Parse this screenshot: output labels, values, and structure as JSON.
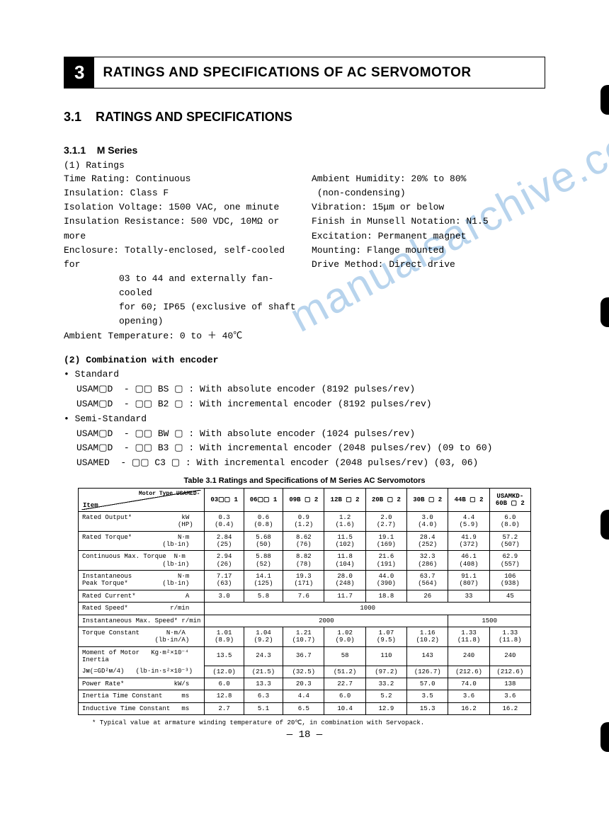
{
  "chapter": {
    "number": "3",
    "title": "RATINGS AND SPECIFICATIONS OF AC SERVOMOTOR"
  },
  "section": {
    "number": "3.1",
    "title": "RATINGS AND SPECIFICATIONS"
  },
  "subsection": {
    "number": "3.1.1",
    "title": "M Series"
  },
  "ratings": {
    "heading": "(1) Ratings",
    "left": [
      "Time Rating: Continuous",
      "Insulation: Class F",
      "Isolation Voltage: 1500 VAC, one minute",
      "Insulation Resistance: 500 VDC, 10MΩ or more",
      "Enclosure: Totally-enclosed, self-cooled for",
      "03 to 44 and externally fan-cooled",
      "for 60; IP65 (exclusive of shaft",
      "opening)",
      "Ambient Temperature: 0 to ＋ 40℃"
    ],
    "right": [
      "Ambient Humidity: 20% to 80%",
      " (non-condensing)",
      "Vibration: 15μm or below",
      "Finish in Munsell Notation: N1.5",
      "Excitation: Permanent magnet",
      "Mounting: Flange mounted",
      "Drive Method: Direct drive"
    ]
  },
  "combo": {
    "heading": "(2) Combination with encoder",
    "std_label": "• Standard",
    "semi_label": "• Semi-Standard",
    "lines_std": [
      "USAM▢D  - ▢▢ BS ▢ : With absolute encoder (8192 pulses/rev)",
      "USAM▢D  - ▢▢ B2 ▢ : With incremental encoder (8192 pulses/rev)"
    ],
    "lines_semi": [
      "USAM▢D  - ▢▢ BW ▢ : With absolute encoder (1024 pulses/rev)",
      "USAM▢D  - ▢▢ B3 ▢ : With incremental encoder (2048 pulses/rev) (09 to 60)",
      "USAMED  - ▢▢ C3 ▢ : With incremental encoder (2048 pulses/rev) (03, 06)"
    ]
  },
  "table": {
    "title": "Table 3.1  Ratings and Specifications of M Series AC Servomotors",
    "header_toprt": "Motor Type USAMED-",
    "header_btlft": "Item",
    "cols": [
      "03▢▢ 1",
      "06▢▢ 1",
      "09B ▢ 2",
      "12B ▢ 2",
      "20B ▢ 2",
      "30B ▢ 2",
      "44B ▢ 2",
      "USAMKD-\n60B ▢ 2"
    ],
    "rows": [
      {
        "item": "Rated Output*             kW\n                         (HP)",
        "v": [
          "0.3\n(0.4)",
          "0.6\n(0.8)",
          "0.9\n(1.2)",
          "1.2\n(1.6)",
          "2.0\n(2.7)",
          "3.0\n(4.0)",
          "4.4\n(5.9)",
          "6.0\n(8.0)"
        ]
      },
      {
        "item": "Rated Torque*            N·m\n                     (lb·in)",
        "v": [
          "2.84\n(25)",
          "5.68\n(50)",
          "8.62\n(76)",
          "11.5\n(102)",
          "19.1\n(169)",
          "28.4\n(252)",
          "41.9\n(372)",
          "57.2\n(507)"
        ]
      },
      {
        "item": "Continuous Max. Torque  N·m\n                     (lb·in)",
        "v": [
          "2.94\n(26)",
          "5.88\n(52)",
          "8.82\n(78)",
          "11.8\n(104)",
          "21.6\n(191)",
          "32.3\n(286)",
          "46.1\n(408)",
          "62.9\n(557)"
        ]
      },
      {
        "item": "Instantaneous            N·m\nPeak Torque*         (lb·in)",
        "v": [
          "7.17\n(63)",
          "14.1\n(125)",
          "19.3\n(171)",
          "28.0\n(248)",
          "44.0\n(390)",
          "63.7\n(564)",
          "91.1\n(807)",
          "106\n(938)"
        ]
      },
      {
        "item": "Rated Current*             A",
        "v": [
          "3.0",
          "5.8",
          "7.6",
          "11.7",
          "18.8",
          "26",
          "33",
          "45"
        ]
      },
      {
        "item_speed": "Rated Speed*           r/min",
        "span8": "1000"
      },
      {
        "item_maxspeed": "Instantaneous Max. Speed* r/min",
        "span6": "2000",
        "span2": "1500"
      },
      {
        "item": "Torque Constant       N·m/A\n                   (lb·in/A)",
        "v": [
          "1.01\n(8.9)",
          "1.04\n(9.2)",
          "1.21\n(10.7)",
          "1.02\n(9.0)",
          "1.07\n(9.5)",
          "1.16\n(10.2)",
          "1.33\n(11.8)",
          "1.33\n(11.8)"
        ]
      },
      {
        "item_inertia_top": "Moment of Motor   Kg·m²×10⁻⁴\nInertia",
        "v": [
          "13.5",
          "24.3",
          "36.7",
          "58",
          "110",
          "143",
          "240",
          "240"
        ]
      },
      {
        "item_inertia_bot": "Jᴍ(=GD²ᴍ/4)   (lb·in·s²×10⁻³)",
        "v": [
          "(12.0)",
          "(21.5)",
          "(32.5)",
          "(51.2)",
          "(97.2)",
          "(126.7)",
          "(212.6)",
          "(212.6)"
        ]
      },
      {
        "item": "Power Rate*             kW/s",
        "v": [
          "6.0",
          "13.3",
          "20.3",
          "22.7",
          "33.2",
          "57.0",
          "74.0",
          "138"
        ]
      },
      {
        "item": "Inertia Time Constant     ms",
        "v": [
          "12.8",
          "6.3",
          "4.4",
          "6.0",
          "5.2",
          "3.5",
          "3.6",
          "3.6"
        ]
      },
      {
        "item": "Inductive Time Constant   ms",
        "v": [
          "2.7",
          "5.1",
          "6.5",
          "10.4",
          "12.9",
          "15.3",
          "16.2",
          "16.2"
        ]
      }
    ]
  },
  "footnote": "* Typical value at armature winding temperature of 20℃, in combination with Servopack.",
  "page_num": "— 18 —",
  "watermark": "manualsarchive.com"
}
